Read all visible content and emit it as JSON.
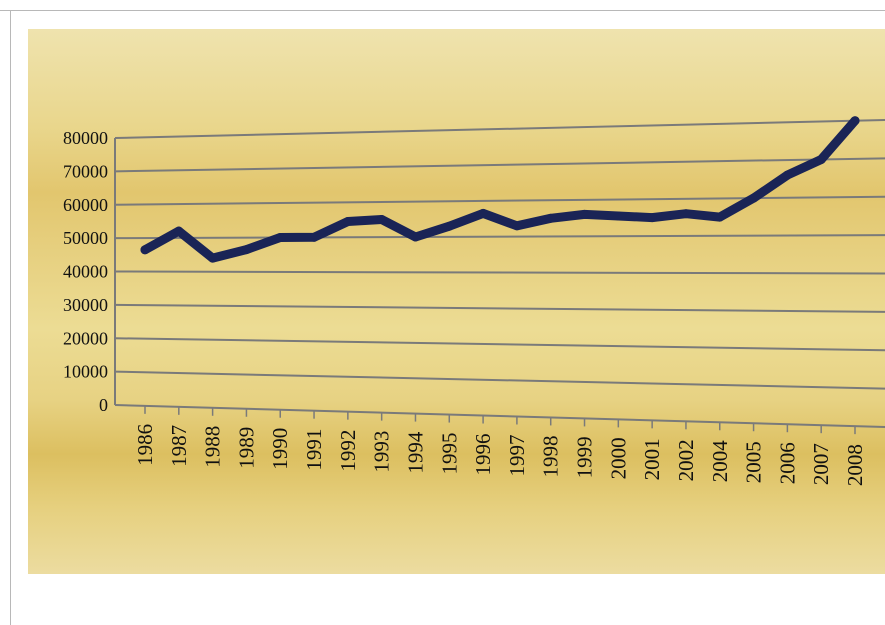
{
  "chart_data": {
    "type": "line",
    "title": "",
    "xlabel": "",
    "ylabel": "",
    "categories": [
      "1986",
      "1987",
      "1988",
      "1989",
      "1990",
      "1991",
      "1992",
      "1993",
      "1994",
      "1995",
      "1996",
      "1997",
      "1998",
      "1999",
      "2000",
      "2001",
      "2002",
      "2004",
      "2005",
      "2006",
      "2007",
      "2008"
    ],
    "y_ticks": [
      "0",
      "10000",
      "20000",
      "30000",
      "40000",
      "50000",
      "60000",
      "70000",
      "80000"
    ],
    "series": [
      {
        "values": [
          46500,
          52000,
          44000,
          46500,
          50000,
          50000,
          54500,
          55000,
          50000,
          53000,
          56500,
          53000,
          55000,
          56000,
          55500,
          55000,
          56000,
          55000,
          60000,
          66000,
          70000,
          80000
        ]
      }
    ],
    "ylim": [
      0,
      80000
    ],
    "grid": true,
    "legend": "none",
    "colors": {
      "line": "#1a2456",
      "grid": "#7a7a7a",
      "background_light": "#efe3a8",
      "background_mid": "#e0c268"
    }
  }
}
